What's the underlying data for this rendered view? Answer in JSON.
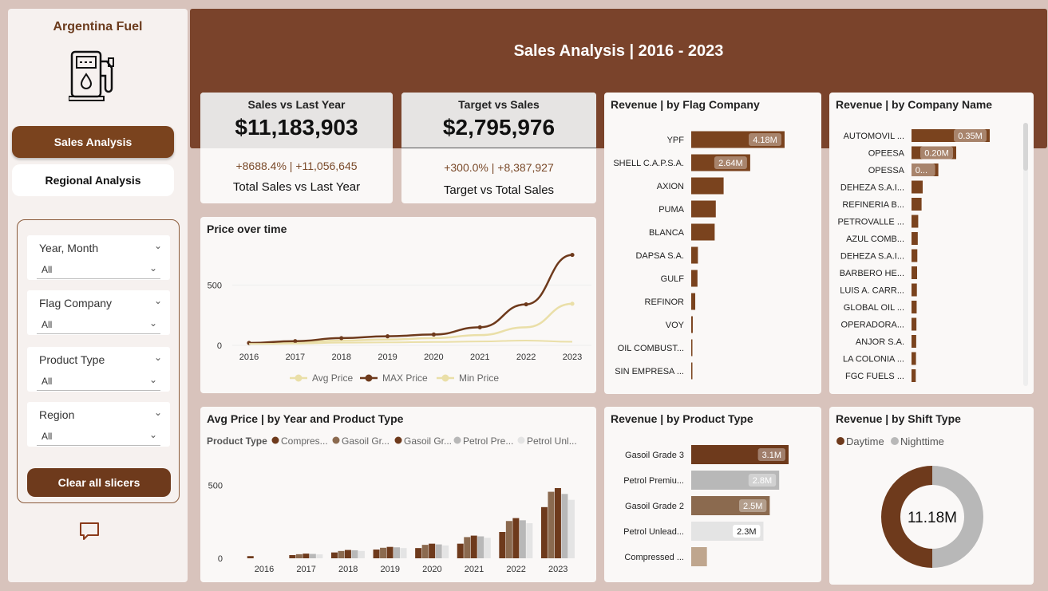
{
  "sidebar": {
    "app_title": "Argentina Fuel",
    "nav": {
      "sales": "Sales Analysis",
      "regional": "Regional Analysis"
    },
    "slicers": [
      {
        "label": "Year, Month",
        "value": "All"
      },
      {
        "label": "Flag Company",
        "value": "All"
      },
      {
        "label": "Product Type",
        "value": "All"
      },
      {
        "label": "Region",
        "value": "All"
      }
    ],
    "clear_label": "Clear all slicers"
  },
  "header": {
    "title": "Sales Analysis | 2016 - 2023"
  },
  "kpi_sales": {
    "label": "Sales vs Last Year",
    "value": "$11,183,903",
    "delta": "+8688.4% | +11,056,645",
    "sub": "Total Sales vs Last Year"
  },
  "kpi_target": {
    "label": "Target vs Sales",
    "value": "$2,795,976",
    "delta": "+300.0% | +8,387,927",
    "sub": "Target vs Total Sales"
  },
  "colors": {
    "brown_dark": "#6e3a1c",
    "brown_mid": "#8b6a4f",
    "tan": "#bfa68e",
    "grey": "#b8b8b8",
    "light_grey": "#e4e4e4",
    "cream": "#eadfa8"
  },
  "chart_data": [
    {
      "id": "price_over_time",
      "type": "line",
      "title": "Price over time",
      "x": [
        "2016",
        "2017",
        "2018",
        "2019",
        "2020",
        "2021",
        "2022",
        "2023"
      ],
      "ylim": [
        0,
        800
      ],
      "yticks": [
        "0",
        "500"
      ],
      "series": [
        {
          "name": "Avg Price",
          "values": [
            18,
            25,
            40,
            48,
            60,
            85,
            150,
            345
          ],
          "color": "#eadfa8"
        },
        {
          "name": "MAX Price",
          "values": [
            20,
            35,
            60,
            75,
            90,
            150,
            340,
            750
          ],
          "color": "#6e3a1c"
        },
        {
          "name": "Min Price",
          "values": [
            12,
            15,
            22,
            25,
            28,
            32,
            40,
            30
          ],
          "color": "#eadfa8"
        }
      ]
    },
    {
      "id": "avg_price_by_year_product",
      "type": "bar",
      "title": "Avg Price | by Year and Product Type",
      "legend_title": "Product Type",
      "categories": [
        "2016",
        "2017",
        "2018",
        "2019",
        "2020",
        "2021",
        "2022",
        "2023"
      ],
      "ylim": [
        0,
        600
      ],
      "yticks": [
        "0",
        "500"
      ],
      "series": [
        {
          "name": "Compres...",
          "color": "#6e3a1c",
          "values": [
            15,
            22,
            40,
            60,
            70,
            100,
            180,
            350
          ]
        },
        {
          "name": "Gasoil Gr...",
          "color": "#8b6a4f",
          "values": [
            0,
            28,
            50,
            72,
            92,
            145,
            255,
            455
          ]
        },
        {
          "name": "Gasoil Gr...",
          "color": "#6e3a1c",
          "values": [
            0,
            32,
            57,
            78,
            100,
            155,
            275,
            480
          ]
        },
        {
          "name": "Petrol Pre...",
          "color": "#b8b8b8",
          "values": [
            0,
            30,
            55,
            75,
            95,
            150,
            260,
            440
          ]
        },
        {
          "name": "Petrol Unl...",
          "color": "#e4e4e4",
          "values": [
            0,
            27,
            50,
            70,
            88,
            140,
            240,
            400
          ]
        }
      ]
    },
    {
      "id": "revenue_by_flag",
      "type": "bar",
      "orientation": "horizontal",
      "title": "Revenue | by Flag Company",
      "categories": [
        "YPF",
        "SHELL C.A.P.S.A.",
        "AXION",
        "PUMA",
        "BLANCA",
        "DAPSA S.A.",
        "GULF",
        "REFINOR",
        "VOY",
        "OIL COMBUST...",
        "SIN EMPRESA ..."
      ],
      "values": [
        4.18,
        2.64,
        1.45,
        1.1,
        1.05,
        0.3,
        0.28,
        0.18,
        0.07,
        0.05,
        0.04
      ],
      "labels": [
        "4.18M",
        "2.64M",
        "",
        "",
        "",
        "",
        "",
        "",
        "",
        "",
        ""
      ]
    },
    {
      "id": "revenue_by_company",
      "type": "bar",
      "orientation": "horizontal",
      "title": "Revenue | by Company Name",
      "categories": [
        "AUTOMOVIL ...",
        "OPEESA",
        "OPESSA",
        "DEHEZA S.A.I...",
        "REFINERIA B...",
        "PETROVALLE ...",
        "AZUL COMB...",
        "DEHEZA S.A.I...",
        "BARBERO HE...",
        "LUIS A. CARR...",
        "GLOBAL OIL ...",
        "OPERADORA...",
        "ANJOR S.A.",
        "LA COLONIA ...",
        "FGC FUELS ..."
      ],
      "values": [
        0.35,
        0.2,
        0.12,
        0.05,
        0.045,
        0.03,
        0.028,
        0.026,
        0.025,
        0.024,
        0.023,
        0.022,
        0.021,
        0.02,
        0.019
      ],
      "labels": [
        "0.35M",
        "0.20M",
        "0...",
        "",
        "",
        "",
        "",
        "",
        "",
        "",
        "",
        "",
        "",
        "",
        ""
      ]
    },
    {
      "id": "revenue_by_product",
      "type": "bar",
      "orientation": "horizontal",
      "title": "Revenue | by Product Type",
      "categories": [
        "Gasoil Grade 3",
        "Petrol Premiu...",
        "Gasoil Grade 2",
        "Petrol Unlead...",
        "Compressed ..."
      ],
      "values": [
        3.1,
        2.8,
        2.5,
        2.3,
        0.5
      ],
      "labels": [
        "3.1M",
        "2.8M",
        "2.5M",
        "2.3M",
        ""
      ],
      "colors": [
        "#6e3a1c",
        "#b8b8b8",
        "#8b6a4f",
        "#e4e4e4",
        "#bfa68e"
      ]
    },
    {
      "id": "revenue_by_shift",
      "type": "pie",
      "title": "Revenue | by Shift Type",
      "center_label": "11.18M",
      "series": [
        {
          "name": "Daytime",
          "value": 50,
          "color": "#6e3a1c"
        },
        {
          "name": "Nighttime",
          "value": 50,
          "color": "#b8b8b8"
        }
      ]
    }
  ]
}
